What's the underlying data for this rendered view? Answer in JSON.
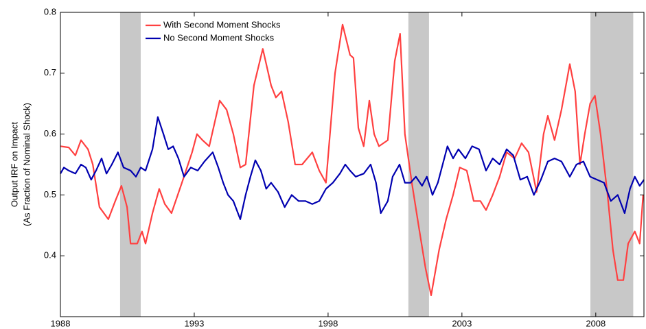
{
  "chart_data": {
    "type": "line",
    "ylabel": [
      "Output IRF on Impact",
      "(As Fraction of Nominal Shock)"
    ],
    "xlim": [
      1988,
      2009.8
    ],
    "xticks": [
      1988,
      1993,
      1998,
      2003,
      2008
    ],
    "ylim": [
      0.3,
      0.8
    ],
    "yticks": [
      0.4,
      0.5,
      0.6,
      0.7,
      0.8
    ],
    "shaded_periods": [
      [
        1990.23,
        1991.0
      ],
      [
        2001.0,
        2001.77
      ],
      [
        2007.8,
        2009.4
      ]
    ],
    "shade_color": "#c8c8c8",
    "legend": "upper left",
    "series": [
      {
        "name": "With Second Moment Shocks",
        "color": "#ff4040",
        "x": [
          1988,
          1988.31,
          1988.56,
          1988.77,
          1989.03,
          1989.21,
          1989.46,
          1989.79,
          1990.05,
          1990.28,
          1990.49,
          1990.62,
          1990.87,
          1991.05,
          1991.18,
          1991.44,
          1991.69,
          1991.9,
          1992.15,
          1992.54,
          1992.92,
          1993.1,
          1993.31,
          1993.56,
          1993.95,
          1994.21,
          1994.46,
          1994.72,
          1994.92,
          1995.23,
          1995.56,
          1995.87,
          1996.05,
          1996.26,
          1996.51,
          1996.77,
          1997.03,
          1997.41,
          1997.67,
          1997.92,
          1998.26,
          1998.54,
          1998.82,
          1998.95,
          1999.13,
          1999.33,
          1999.54,
          1999.72,
          1999.9,
          2000.23,
          2000.49,
          2000.69,
          2000.87,
          2001.13,
          2001.38,
          2001.64,
          2001.85,
          2002.15,
          2002.41,
          2002.67,
          2002.92,
          2003.18,
          2003.44,
          2003.69,
          2003.9,
          2004.15,
          2004.41,
          2004.67,
          2004.97,
          2005.23,
          2005.49,
          2005.79,
          2006.05,
          2006.21,
          2006.46,
          2006.72,
          2007.03,
          2007.23,
          2007.41,
          2007.59,
          2007.79,
          2007.97,
          2008.18,
          2008.44,
          2008.64,
          2008.82,
          2009.03,
          2009.21,
          2009.46,
          2009.64,
          2009.77
        ],
        "values": [
          0.58,
          0.578,
          0.565,
          0.59,
          0.575,
          0.55,
          0.48,
          0.46,
          0.49,
          0.515,
          0.48,
          0.42,
          0.42,
          0.44,
          0.42,
          0.47,
          0.51,
          0.485,
          0.47,
          0.52,
          0.57,
          0.6,
          0.59,
          0.58,
          0.655,
          0.64,
          0.6,
          0.545,
          0.55,
          0.68,
          0.74,
          0.68,
          0.66,
          0.67,
          0.62,
          0.55,
          0.55,
          0.57,
          0.54,
          0.52,
          0.7,
          0.78,
          0.73,
          0.725,
          0.61,
          0.58,
          0.655,
          0.6,
          0.58,
          0.59,
          0.72,
          0.765,
          0.6,
          0.52,
          0.45,
          0.38,
          0.335,
          0.41,
          0.46,
          0.5,
          0.545,
          0.54,
          0.49,
          0.49,
          0.475,
          0.5,
          0.53,
          0.57,
          0.56,
          0.585,
          0.57,
          0.505,
          0.6,
          0.63,
          0.59,
          0.64,
          0.715,
          0.67,
          0.55,
          0.6,
          0.65,
          0.663,
          0.6,
          0.5,
          0.41,
          0.36,
          0.36,
          0.42,
          0.44,
          0.42,
          0.5
        ]
      },
      {
        "name": "No Second Moment Shocks",
        "color": "#0000b0",
        "x": [
          1988,
          1988.13,
          1988.31,
          1988.56,
          1988.77,
          1988.95,
          1989.15,
          1989.33,
          1989.54,
          1989.72,
          1989.92,
          1990.15,
          1990.36,
          1990.62,
          1990.82,
          1991.0,
          1991.18,
          1991.44,
          1991.64,
          1991.85,
          1992.03,
          1992.21,
          1992.41,
          1992.62,
          1992.87,
          1993.13,
          1993.38,
          1993.69,
          1993.9,
          1994.08,
          1994.26,
          1994.46,
          1994.72,
          1994.92,
          1995.1,
          1995.28,
          1995.49,
          1995.69,
          1995.87,
          1996.13,
          1996.38,
          1996.64,
          1996.9,
          1997.15,
          1997.41,
          1997.67,
          1997.92,
          1998.18,
          1998.44,
          1998.64,
          1998.82,
          1999.03,
          1999.33,
          1999.59,
          1999.79,
          1999.97,
          2000.23,
          2000.41,
          2000.67,
          2000.87,
          2001.08,
          2001.28,
          2001.51,
          2001.69,
          2001.9,
          2002.1,
          2002.28,
          2002.46,
          2002.67,
          2002.87,
          2003.13,
          2003.38,
          2003.64,
          2003.9,
          2004.15,
          2004.41,
          2004.67,
          2004.92,
          2005.18,
          2005.44,
          2005.69,
          2005.95,
          2006.21,
          2006.46,
          2006.72,
          2007.03,
          2007.28,
          2007.54,
          2007.79,
          2008.05,
          2008.31,
          2008.56,
          2008.82,
          2009.08,
          2009.28,
          2009.46,
          2009.64,
          2009.8
        ],
        "values": [
          0.535,
          0.545,
          0.54,
          0.535,
          0.55,
          0.545,
          0.525,
          0.54,
          0.56,
          0.535,
          0.55,
          0.57,
          0.545,
          0.54,
          0.53,
          0.545,
          0.54,
          0.575,
          0.628,
          0.6,
          0.575,
          0.58,
          0.56,
          0.53,
          0.545,
          0.54,
          0.555,
          0.57,
          0.545,
          0.52,
          0.5,
          0.49,
          0.46,
          0.5,
          0.53,
          0.557,
          0.54,
          0.51,
          0.52,
          0.505,
          0.48,
          0.5,
          0.49,
          0.49,
          0.485,
          0.49,
          0.51,
          0.52,
          0.535,
          0.55,
          0.54,
          0.53,
          0.535,
          0.55,
          0.52,
          0.47,
          0.49,
          0.53,
          0.55,
          0.52,
          0.52,
          0.53,
          0.515,
          0.53,
          0.5,
          0.52,
          0.55,
          0.58,
          0.56,
          0.575,
          0.56,
          0.58,
          0.575,
          0.54,
          0.56,
          0.55,
          0.575,
          0.565,
          0.525,
          0.53,
          0.5,
          0.525,
          0.555,
          0.56,
          0.555,
          0.53,
          0.55,
          0.555,
          0.53,
          0.525,
          0.52,
          0.49,
          0.5,
          0.47,
          0.51,
          0.53,
          0.515,
          0.525
        ]
      }
    ]
  }
}
